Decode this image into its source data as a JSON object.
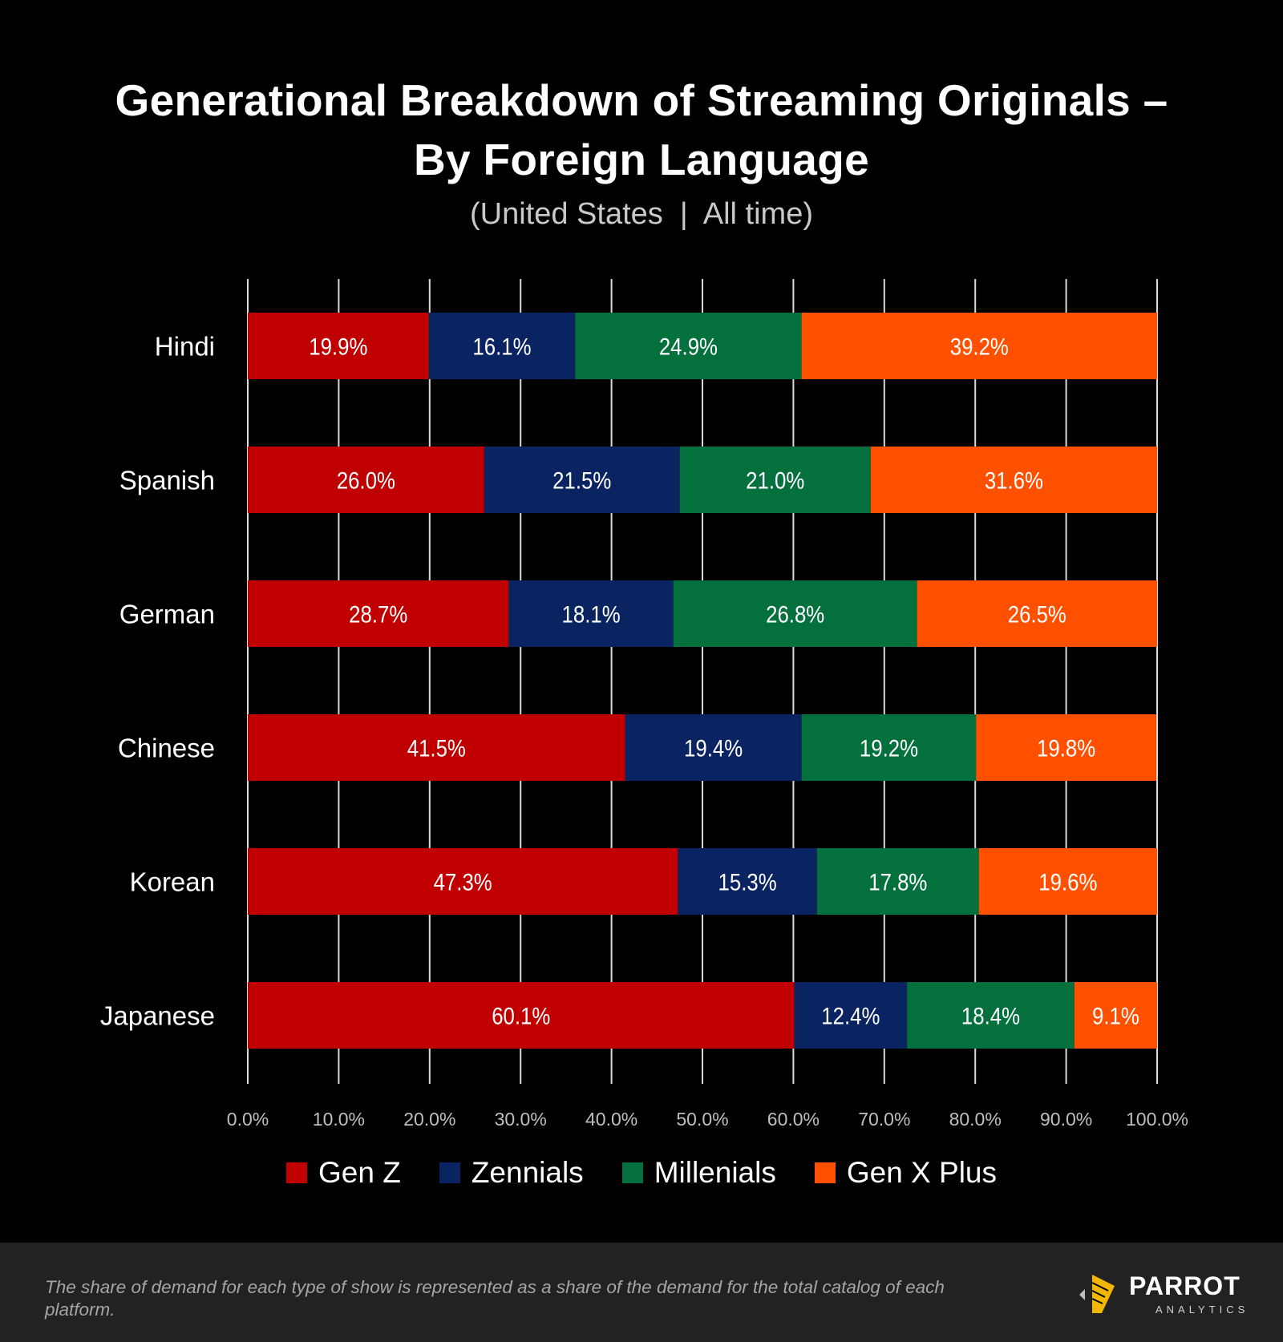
{
  "header": {
    "title_line1": "Generational Breakdown of Streaming Originals –",
    "title_line2": "By Foreign Language",
    "subtitle": "(United States  |  All time)"
  },
  "chart_data": {
    "type": "bar",
    "orientation": "horizontal",
    "stacked": true,
    "title": "Generational Breakdown of Streaming Originals – By Foreign Language",
    "subtitle": "(United States | All time)",
    "categories": [
      "Hindi",
      "Spanish",
      "German",
      "Chinese",
      "Korean",
      "Japanese"
    ],
    "series": [
      {
        "name": "Gen Z",
        "color": "#c00000",
        "values": [
          19.9,
          26.0,
          28.7,
          41.5,
          47.3,
          60.1
        ]
      },
      {
        "name": "Zennials",
        "color": "#0a2462",
        "values": [
          16.1,
          21.5,
          18.1,
          19.4,
          15.3,
          12.4
        ]
      },
      {
        "name": "Millenials",
        "color": "#03703e",
        "values": [
          24.9,
          21.0,
          26.8,
          19.2,
          17.8,
          18.4
        ]
      },
      {
        "name": "Gen X Plus",
        "color": "#ff5000",
        "values": [
          39.2,
          31.6,
          26.5,
          19.8,
          19.6,
          9.1
        ]
      }
    ],
    "xlim": [
      0,
      100
    ],
    "xticks": [
      "0.0%",
      "10.0%",
      "20.0%",
      "30.0%",
      "40.0%",
      "50.0%",
      "60.0%",
      "70.0%",
      "80.0%",
      "90.0%",
      "100.0%"
    ],
    "grid": true,
    "legend_position": "bottom-center"
  },
  "footer": {
    "note": "The share of demand for each type of show is represented as a share of the demand for the total catalog of each platform.",
    "logo_name": "PARROT",
    "logo_sub": "ANALYTICS"
  }
}
